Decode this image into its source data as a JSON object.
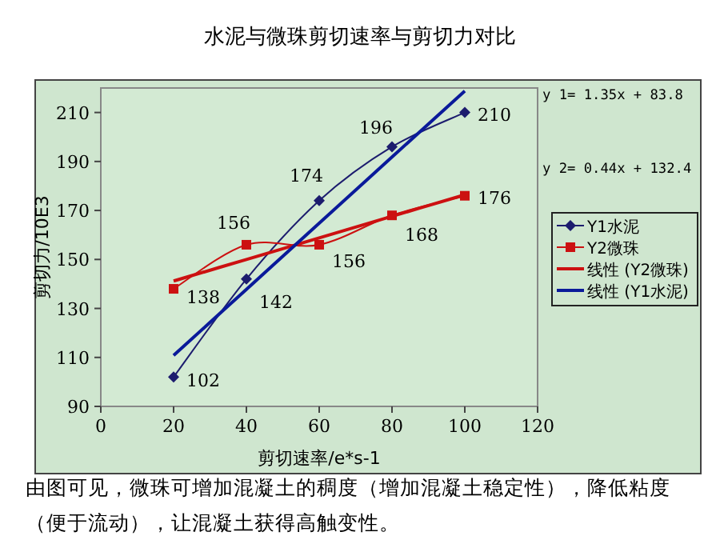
{
  "chart_data": {
    "type": "line",
    "title": "水泥与微珠剪切速率与剪切力对比",
    "xlabel": "剪切速率/e*s-1",
    "ylabel": "剪切力/10E3",
    "x": [
      20,
      40,
      60,
      80,
      100
    ],
    "xlim": [
      0,
      120
    ],
    "xticks": [
      0,
      20,
      40,
      60,
      80,
      100,
      120
    ],
    "ylim": [
      90,
      220
    ],
    "yticks": [
      90,
      110,
      130,
      150,
      170,
      190,
      210
    ],
    "series": [
      {
        "name": "Y1水泥",
        "color": "#1c1c6e",
        "values": [
          102,
          142,
          174,
          196,
          210
        ],
        "value_labels": [
          "102",
          "142",
          "174",
          "196",
          "210"
        ],
        "marker": "diamond"
      },
      {
        "name": "Y2微珠",
        "color": "#cc1111",
        "values": [
          138,
          156,
          156,
          168,
          176
        ],
        "value_labels": [
          "138",
          "156",
          "156",
          "168",
          "176"
        ],
        "marker": "square"
      },
      {
        "name": "线性 (Y2微珠)",
        "color": "#cc1111",
        "values": [
          141.2,
          150.0,
          158.8,
          167.6,
          176.4
        ],
        "marker": "none"
      },
      {
        "name": "线性 (Y1水泥)",
        "color": "#0a1a9a",
        "values": [
          110.8,
          137.8,
          164.8,
          191.8,
          218.8
        ],
        "marker": "none"
      }
    ],
    "grid": false,
    "legend": "right",
    "annotations": [
      "y 1= 1.35x + 83.8",
      "y 2= 0.44x + 132.4",
      "由图可见，微珠可增加混凝土的稠度（增加混凝土稳定性），降低粘度（便于流动），让混凝土获得高触变性。"
    ]
  }
}
